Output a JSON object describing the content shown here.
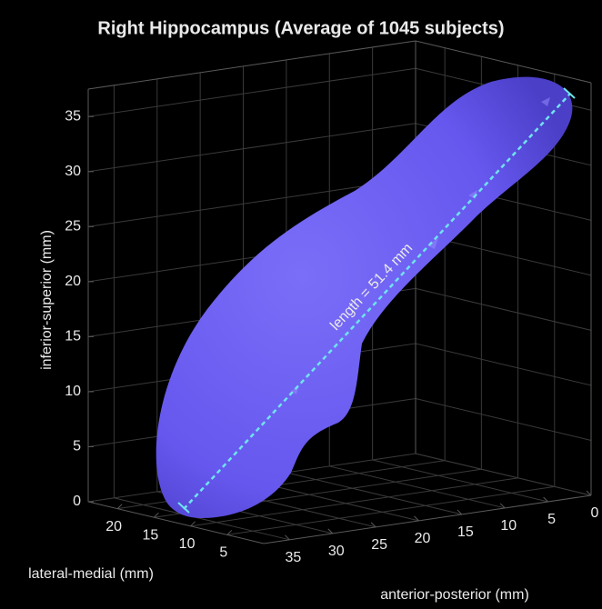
{
  "chart_data": {
    "type": "surface3d",
    "title": "Right Hippocampus (Average of 1045 subjects)",
    "xlabel": "lateral-medial (mm)",
    "ylabel": "anterior-posterior (mm)",
    "zlabel": "inferior-superior (mm)",
    "xlim": [
      0,
      24
    ],
    "xticks": [
      5,
      10,
      15,
      20
    ],
    "ylim": [
      0,
      38
    ],
    "yticks": [
      0,
      5,
      10,
      15,
      20,
      25,
      30,
      35
    ],
    "zlim": [
      0,
      37.5
    ],
    "zticks": [
      0,
      5,
      10,
      15,
      20,
      25,
      30,
      35
    ],
    "annotation": "length = 51.4 mm",
    "color": "#6a5df2",
    "line_color": "#6fe3f0",
    "grid": true
  }
}
